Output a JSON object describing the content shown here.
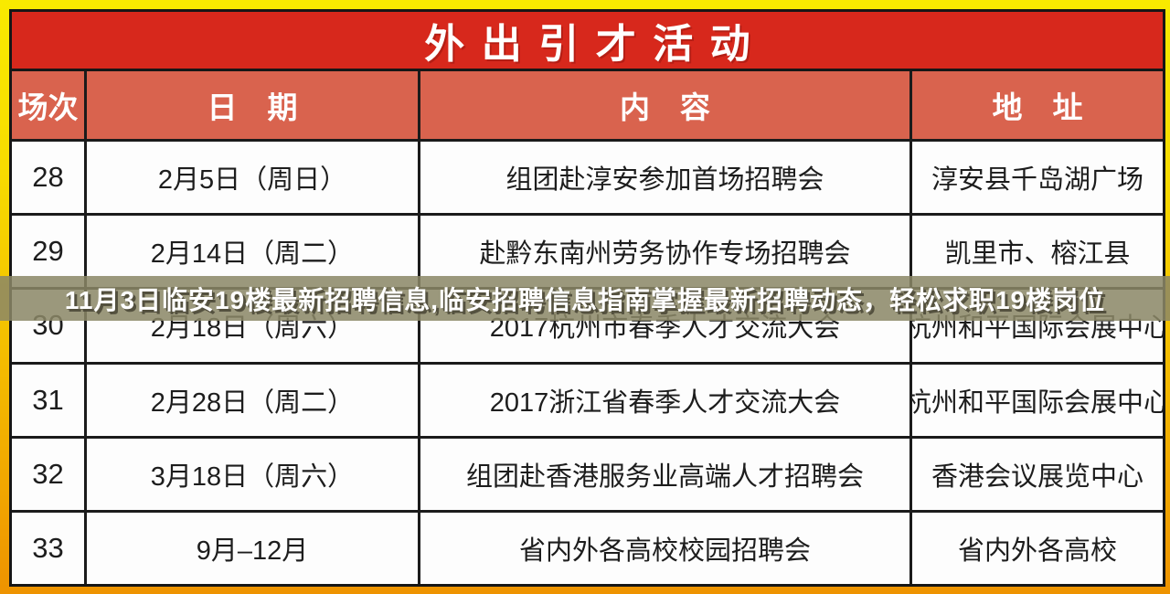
{
  "title": "外出引才活动",
  "overlay": {
    "text": "11月3日临安19楼最新招聘信息,临安招聘信息指南掌握最新招聘动态，轻松求职19楼岗位"
  },
  "table": {
    "headers": {
      "session": "场次",
      "date": "日　期",
      "content": "内　容",
      "address": "地　址"
    },
    "rows": [
      {
        "session": "28",
        "date": "2月5日（周日）",
        "content": "组团赴淳安参加首场招聘会",
        "address": "淳安县千岛湖广场"
      },
      {
        "session": "29",
        "date": "2月14日（周二）",
        "content": "赴黔东南州劳务协作专场招聘会",
        "address": "凯里市、榕江县"
      },
      {
        "session": "30",
        "date": "2月18日（周六）",
        "content": "2017杭州市春季人才交流大会",
        "address": "杭州和平国际会展中心"
      },
      {
        "session": "31",
        "date": "2月28日（周二）",
        "content": "2017浙江省春季人才交流大会",
        "address": "杭州和平国际会展中心"
      },
      {
        "session": "32",
        "date": "3月18日（周六）",
        "content": "组团赴香港服务业高端人才招聘会",
        "address": "香港会议展览中心"
      },
      {
        "session": "33",
        "date": "9月–12月",
        "content": "省内外各高校校园招聘会",
        "address": "省内外各高校"
      }
    ]
  },
  "colors": {
    "frame_yellow_top": "#f9ea00",
    "frame_orange_bottom": "#ee9300",
    "title_red": "#d7281c",
    "header_salmon": "#d9634e",
    "cell_white": "#fdfdfd",
    "border_black": "#1b1b1b",
    "overlay_olive": "#8b8767",
    "overlay_text": "#ffffff"
  }
}
